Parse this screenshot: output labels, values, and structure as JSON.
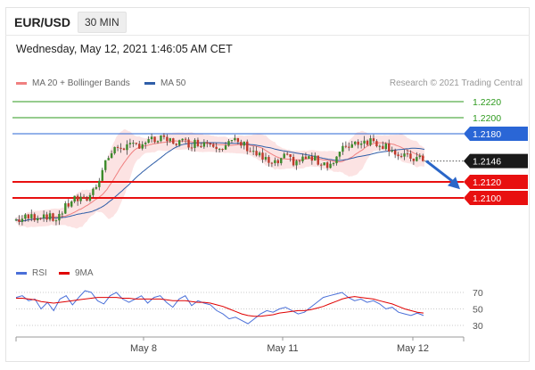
{
  "header": {
    "symbol": "EUR/USD",
    "interval": "30 MIN",
    "datetime": "Wednesday, May 12, 2021 1:46:05 AM CET"
  },
  "legend": {
    "ma20_bb": "MA 20 + Bollinger Bands",
    "ma50": "MA 50",
    "rsi": "RSI",
    "ma9": "9MA",
    "copyright": "Research © 2021 Trading Central"
  },
  "colors": {
    "bollinger": "#f08080",
    "ma50": "#2f5ea8",
    "rsi": "#4a6fd8",
    "ma9": "#e00000",
    "resistance_green": "#2e9a1e",
    "resistance_blue": "#2a66d6",
    "support_red": "#e81010",
    "price_tag": "#1a1a1a",
    "forecast_arrow": "#2a66c8"
  },
  "chart_data": [
    {
      "type": "candlestick",
      "symbol": "EUR/USD",
      "timeframe": "30 MIN",
      "x_tick_labels": [
        "May 8",
        "May 11",
        "May 12"
      ],
      "ylim": [
        1.2055,
        1.2235
      ],
      "current_price": 1.2146,
      "levels": [
        {
          "value": 1.222,
          "label": "1.2220",
          "kind": "resistance",
          "color": "#2e9a1e"
        },
        {
          "value": 1.22,
          "label": "1.2200",
          "kind": "resistance",
          "color": "#2e9a1e"
        },
        {
          "value": 1.218,
          "label": "1.2180",
          "kind": "pivot",
          "color": "#2a66d6"
        },
        {
          "value": 1.212,
          "label": "1.2120",
          "kind": "support",
          "color": "#e81010"
        },
        {
          "value": 1.21,
          "label": "1.2100",
          "kind": "support",
          "color": "#e81010"
        }
      ],
      "price_path": [
        [
          0,
          1.2072
        ],
        [
          10,
          1.2076
        ],
        [
          20,
          1.208
        ],
        [
          25,
          1.2072
        ],
        [
          32,
          1.2085
        ],
        [
          38,
          1.21
        ],
        [
          45,
          1.2095
        ],
        [
          52,
          1.2112
        ],
        [
          60,
          1.215
        ],
        [
          68,
          1.2165
        ],
        [
          75,
          1.2163
        ],
        [
          85,
          1.217
        ],
        [
          95,
          1.2172
        ],
        [
          105,
          1.217
        ],
        [
          115,
          1.2168
        ],
        [
          125,
          1.217
        ],
        [
          135,
          1.2165
        ],
        [
          142,
          1.217
        ],
        [
          150,
          1.2165
        ],
        [
          160,
          1.215
        ],
        [
          168,
          1.214
        ],
        [
          175,
          1.215
        ],
        [
          182,
          1.2145
        ],
        [
          190,
          1.215
        ],
        [
          198,
          1.2145
        ],
        [
          206,
          1.2142
        ],
        [
          215,
          1.2165
        ],
        [
          222,
          1.217
        ],
        [
          230,
          1.2172
        ],
        [
          237,
          1.2168
        ],
        [
          245,
          1.2162
        ],
        [
          250,
          1.215
        ],
        [
          258,
          1.215
        ],
        [
          265,
          1.2146
        ]
      ],
      "forecast": {
        "from": 1.2146,
        "to": 1.2113,
        "direction": "down"
      }
    },
    {
      "type": "line",
      "title": "RSI",
      "y_ticks": [
        70,
        50,
        30
      ],
      "ylim": [
        20,
        80
      ],
      "series": [
        {
          "name": "RSI",
          "color": "#4a6fd8",
          "values": [
            64,
            66,
            60,
            62,
            50,
            58,
            48,
            62,
            66,
            55,
            64,
            72,
            70,
            60,
            56,
            66,
            70,
            62,
            58,
            62,
            66,
            57,
            64,
            66,
            58,
            52,
            62,
            66,
            54,
            60,
            57,
            55,
            48,
            44,
            38,
            40,
            36,
            32,
            38,
            44,
            48,
            46,
            50,
            52,
            48,
            44,
            46,
            52,
            58,
            64,
            66,
            68,
            70,
            64,
            60,
            62,
            58,
            60,
            56,
            50,
            52,
            46,
            44,
            42,
            45,
            42
          ]
        },
        {
          "name": "9MA",
          "color": "#e00000",
          "values": [
            63,
            63,
            62,
            61,
            59,
            58,
            57,
            58,
            59,
            60,
            61,
            62,
            63,
            64,
            64,
            64,
            64,
            63,
            63,
            62,
            62,
            62,
            62,
            62,
            61,
            60,
            60,
            60,
            59,
            58,
            58,
            57,
            55,
            53,
            50,
            47,
            44,
            42,
            41,
            41,
            42,
            43,
            45,
            46,
            47,
            48,
            48,
            49,
            51,
            53,
            56,
            59,
            62,
            64,
            65,
            64,
            63,
            62,
            60,
            58,
            56,
            53,
            50,
            48,
            46,
            45
          ]
        }
      ]
    }
  ]
}
